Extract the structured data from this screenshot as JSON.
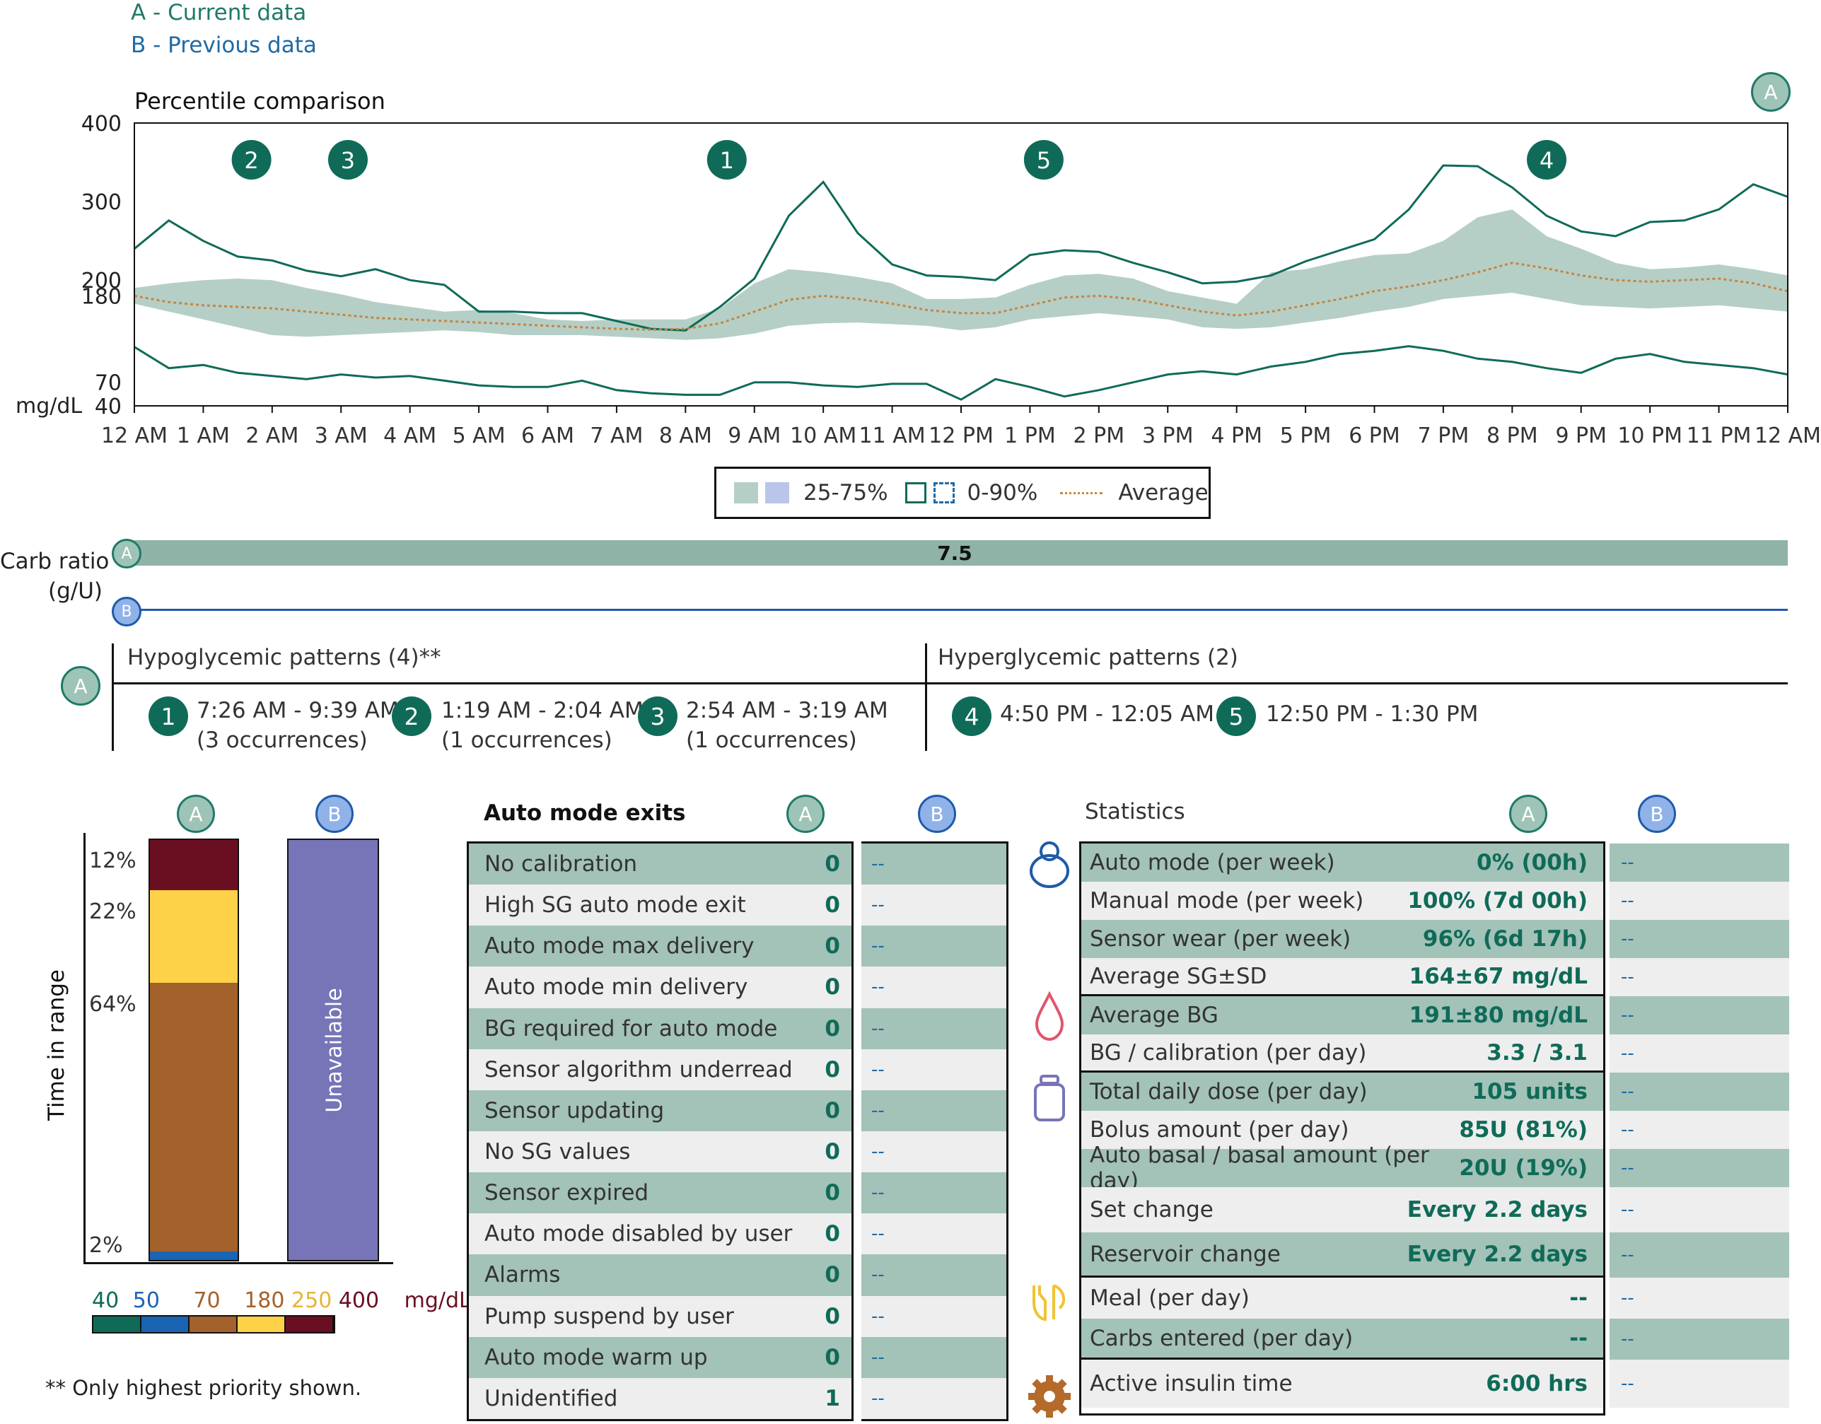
{
  "legend_top": {
    "a": "A - Current data",
    "b": "B - Previous data"
  },
  "badges": {
    "a": "A",
    "b": "B"
  },
  "chart_data": {
    "type": "area",
    "title": "Percentile comparison",
    "ylabel": "mg/dL",
    "ylim": [
      40,
      400
    ],
    "y_ticks": [
      "400",
      "300",
      "200",
      "180",
      "70",
      "40"
    ],
    "x_ticks": [
      "12 AM",
      "1 AM",
      "2 AM",
      "3 AM",
      "4 AM",
      "5 AM",
      "6 AM",
      "7 AM",
      "8 AM",
      "9 AM",
      "10 AM",
      "11 AM",
      "12 PM",
      "1 PM",
      "2 PM",
      "3 PM",
      "4 PM",
      "5 PM",
      "6 PM",
      "7 PM",
      "8 PM",
      "9 PM",
      "10 PM",
      "11 PM",
      "12 AM"
    ],
    "hours": [
      0,
      0.5,
      1,
      1.5,
      2,
      2.5,
      3,
      3.5,
      4,
      4.5,
      5,
      5.5,
      6,
      6.5,
      7,
      7.5,
      8,
      8.5,
      9,
      9.5,
      10,
      10.5,
      11,
      11.5,
      12,
      12.5,
      13,
      13.5,
      14,
      14.5,
      15,
      15.5,
      16,
      16.5,
      17,
      17.5,
      18,
      18.5,
      19,
      19.5,
      20,
      20.5,
      21,
      21.5,
      22,
      22.5,
      23,
      23.5,
      24
    ],
    "series": [
      {
        "name": "Average",
        "values": [
          180,
          172,
          168,
          166,
          164,
          160,
          156,
          152,
          150,
          148,
          146,
          144,
          142,
          140,
          138,
          137,
          138,
          145,
          160,
          175,
          180,
          176,
          170,
          162,
          158,
          158,
          168,
          178,
          180,
          176,
          168,
          160,
          155,
          160,
          168,
          176,
          186,
          192,
          200,
          210,
          222,
          215,
          206,
          200,
          198,
          200,
          202,
          196,
          186
        ]
      },
      {
        "name": "25-75% high",
        "values": [
          190,
          196,
          200,
          202,
          200,
          190,
          182,
          172,
          166,
          160,
          162,
          158,
          150,
          148,
          150,
          150,
          150,
          164,
          196,
          214,
          210,
          204,
          196,
          176,
          176,
          178,
          194,
          206,
          208,
          202,
          186,
          178,
          170,
          210,
          214,
          224,
          232,
          234,
          250,
          280,
          290,
          256,
          240,
          222,
          214,
          216,
          220,
          214,
          206
        ]
      },
      {
        "name": "25-75% low",
        "values": [
          170,
          160,
          150,
          140,
          130,
          128,
          130,
          132,
          134,
          136,
          134,
          130,
          130,
          130,
          128,
          126,
          124,
          126,
          132,
          142,
          145,
          146,
          144,
          142,
          136,
          140,
          150,
          154,
          158,
          154,
          150,
          140,
          138,
          140,
          146,
          152,
          160,
          166,
          176,
          180,
          184,
          176,
          168,
          166,
          164,
          166,
          168,
          164,
          160
        ]
      },
      {
        "name": "0-90% high",
        "values": [
          240,
          276,
          250,
          230,
          225,
          212,
          205,
          214,
          200,
          194,
          160,
          160,
          158,
          158,
          148,
          138,
          136,
          166,
          202,
          282,
          325,
          260,
          220,
          206,
          204,
          200,
          232,
          238,
          236,
          222,
          210,
          196,
          198,
          206,
          224,
          238,
          252,
          290,
          346,
          345,
          318,
          282,
          262,
          256,
          274,
          276,
          290,
          322,
          306
        ]
      },
      {
        "name": "0-90% low",
        "values": [
          115,
          88,
          92,
          82,
          78,
          74,
          80,
          76,
          78,
          72,
          66,
          64,
          64,
          72,
          60,
          56,
          54,
          54,
          70,
          70,
          66,
          64,
          68,
          68,
          48,
          74,
          64,
          52,
          60,
          70,
          80,
          84,
          80,
          90,
          96,
          106,
          110,
          116,
          110,
          100,
          96,
          88,
          82,
          100,
          106,
          96,
          92,
          88,
          80
        ]
      }
    ],
    "pattern_markers": [
      {
        "label": "2",
        "hour": 1.7
      },
      {
        "label": "3",
        "hour": 3.1
      },
      {
        "label": "1",
        "hour": 8.6
      },
      {
        "label": "5",
        "hour": 13.2
      },
      {
        "label": "4",
        "hour": 20.5
      }
    ],
    "legend": {
      "band": "25-75%",
      "outline": "0-90%",
      "avg": "Average"
    },
    "colors": {
      "band": "#b5cfc7",
      "outline": "#0f6b58",
      "avg": "#c7853f",
      "bandB": "#b9c6ea"
    }
  },
  "carb": {
    "label_line1": "Carb ratio",
    "label_line2": "(g/U)",
    "value": "7.5"
  },
  "patterns": {
    "hypo_title": "Hypoglycemic patterns (4)**",
    "hyper_title": "Hyperglycemic patterns (2)",
    "hypo": [
      {
        "num": "1",
        "time": "7:26 AM - 9:39 AM",
        "occ": "(3 occurrences)"
      },
      {
        "num": "2",
        "time": "1:19 AM - 2:04 AM",
        "occ": "(1 occurrences)"
      },
      {
        "num": "3",
        "time": "2:54 AM - 3:19 AM",
        "occ": "(1 occurrences)"
      }
    ],
    "hyper": [
      {
        "num": "4",
        "time": "4:50 PM - 12:05 AM"
      },
      {
        "num": "5",
        "time": "12:50 PM - 1:30 PM"
      }
    ]
  },
  "tir": {
    "axis_label": "Time in range",
    "segments_pct": [
      {
        "label": "12%",
        "value": 12,
        "color": "#6a0f22"
      },
      {
        "label": "22%",
        "value": 22,
        "color": "#fdd148"
      },
      {
        "label": "64%",
        "value": 64,
        "color": "#a3612b"
      },
      {
        "label": "2%",
        "value": 2,
        "color": "#1a64b3"
      }
    ],
    "unavailable": "Unavailable",
    "scale": {
      "v40": "40",
      "v50": "50",
      "v70": "70",
      "v180": "180",
      "v250": "250",
      "v400": "400",
      "unit": "mg/dL"
    },
    "scale_colors": [
      "#0f6b58",
      "#1a64b3",
      "#a3612b",
      "#fdd148",
      "#6a0f22"
    ],
    "footnote": "** Only highest priority shown."
  },
  "auto_exits": {
    "title": "Auto mode exits",
    "dash": "--",
    "rows": [
      {
        "label": "No calibration",
        "value": "0"
      },
      {
        "label": "High SG auto mode exit",
        "value": "0"
      },
      {
        "label": "Auto mode max delivery",
        "value": "0"
      },
      {
        "label": "Auto mode min delivery",
        "value": "0"
      },
      {
        "label": "BG required for auto mode",
        "value": "0"
      },
      {
        "label": "Sensor algorithm underread",
        "value": "0"
      },
      {
        "label": "Sensor updating",
        "value": "0"
      },
      {
        "label": "No SG values",
        "value": "0"
      },
      {
        "label": "Sensor expired",
        "value": "0"
      },
      {
        "label": "Auto mode disabled by user",
        "value": "0"
      },
      {
        "label": "Alarms",
        "value": "0"
      },
      {
        "label": "Pump suspend by user",
        "value": "0"
      },
      {
        "label": "Auto mode warm up",
        "value": "0"
      },
      {
        "label": "Unidentified",
        "value": "1"
      }
    ]
  },
  "statistics": {
    "title": "Statistics",
    "dash": "--",
    "rows": [
      {
        "label": "Auto mode (per week)",
        "value": "0% (00h)"
      },
      {
        "label": "Manual mode (per week)",
        "value": "100% (7d 00h)"
      },
      {
        "label": "Sensor wear (per week)",
        "value": "96% (6d 17h)"
      },
      {
        "label": "Average SG±SD",
        "value": "164±67 mg/dL"
      },
      {
        "label": "Average BG",
        "value": "191±80 mg/dL"
      },
      {
        "label": "BG / calibration (per day)",
        "value": "3.3 / 3.1"
      },
      {
        "label": "Total daily dose (per day)",
        "value": "105 units"
      },
      {
        "label": "Bolus amount (per day)",
        "value": "85U (81%)"
      },
      {
        "label": "Auto basal / basal amount (per day)",
        "value": "20U (19%)"
      },
      {
        "label": "Set change",
        "value": "Every 2.2 days"
      },
      {
        "label": "Reservoir change",
        "value": "Every 2.2 days"
      },
      {
        "label": "Meal (per day)",
        "value": "--"
      },
      {
        "label": "Carbs entered (per day)",
        "value": "--"
      },
      {
        "label": "Active insulin time",
        "value": "6:00 hrs"
      }
    ]
  }
}
